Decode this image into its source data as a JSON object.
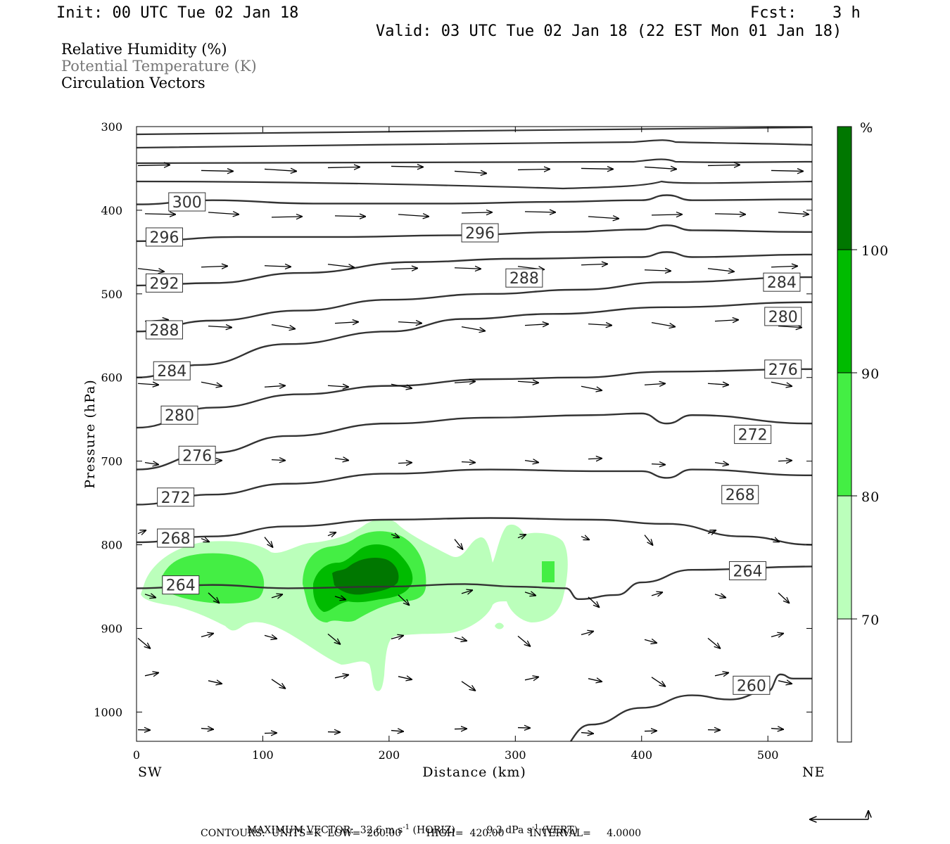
{
  "header": {
    "init": "Init: 00 UTC Tue 02 Jan 18",
    "fcst_label": "Fcst:",
    "fcst_value": "3 h",
    "valid": "Valid: 03 UTC Tue 02 Jan 18 (22 EST Mon 01 Jan 18)"
  },
  "legend": {
    "rh": "Relative Humidity (%)",
    "theta": "Potential Temperature (K)",
    "vectors": "Circulation Vectors"
  },
  "footer": {
    "max_vector_label": "MAXIMUM VECTOR:",
    "horiz_value": "32.6 m s",
    "horiz_suffix": "(HORIZ)",
    "vert_value": "9.3 dPa s",
    "vert_suffix": "(VERT)",
    "exponent": "-1",
    "contours": "CONTOURS:  UNITS=K  LOW=  260.00        HIGH=  420.00        INTERVAL=     4.0000"
  },
  "colors": {
    "rh_70": "#bbffbb",
    "rh_80": "#44ee44",
    "rh_90": "#00bb00",
    "rh_100": "#007700",
    "contour": "#333333"
  },
  "chart_data": {
    "type": "cross-section",
    "xlabel": "Distance (km)",
    "ylabel": "Pressure (hPa)",
    "x_ticks": [
      0,
      100,
      200,
      300,
      400,
      500
    ],
    "y_ticks": [
      300,
      400,
      500,
      600,
      700,
      800,
      900,
      1000
    ],
    "xlim": [
      0,
      535
    ],
    "ylim": [
      300,
      1035
    ],
    "y_reversed": true,
    "left_end_label": "SW",
    "right_end_label": "NE",
    "colorbar": {
      "unit": "%",
      "levels": [
        70,
        80,
        90,
        100
      ],
      "labels": [
        "70",
        "80",
        "90",
        "100"
      ]
    },
    "theta_contours": [
      {
        "label": "300",
        "label_at": [
          40,
          390
        ],
        "points": [
          [
            0,
            393
          ],
          [
            60,
            388
          ],
          [
            140,
            392
          ],
          [
            250,
            392
          ],
          [
            330,
            390
          ],
          [
            400,
            388
          ],
          [
            420,
            382
          ],
          [
            440,
            388
          ],
          [
            535,
            387
          ]
        ]
      },
      {
        "label": "296",
        "label_at": [
          22,
          432
        ],
        "points": [
          [
            0,
            437
          ],
          [
            80,
            432
          ],
          [
            160,
            432
          ],
          [
            250,
            430
          ],
          [
            340,
            426
          ],
          [
            400,
            423
          ],
          [
            420,
            418
          ],
          [
            440,
            424
          ],
          [
            535,
            426
          ]
        ]
      },
      {
        "label": "296",
        "label_at": [
          272,
          427
        ],
        "points": []
      },
      {
        "label": "292",
        "label_at": [
          22,
          487
        ],
        "points": [
          [
            0,
            490
          ],
          [
            60,
            487
          ],
          [
            130,
            475
          ],
          [
            220,
            462
          ],
          [
            300,
            458
          ],
          [
            400,
            456
          ],
          [
            420,
            450
          ],
          [
            440,
            456
          ],
          [
            535,
            453
          ]
        ]
      },
      {
        "label": "288",
        "label_at": [
          307,
          481
        ],
        "points": []
      },
      {
        "label": "284",
        "label_at": [
          511,
          486
        ],
        "points": [
          [
            0,
            545
          ],
          [
            60,
            532
          ],
          [
            130,
            520
          ],
          [
            200,
            507
          ],
          [
            280,
            500
          ],
          [
            350,
            495
          ],
          [
            420,
            486
          ],
          [
            535,
            480
          ]
        ]
      },
      {
        "label": "288",
        "label_at": [
          22,
          543
        ],
        "points": []
      },
      {
        "label": "280",
        "label_at": [
          512,
          527
        ],
        "points": [
          [
            0,
            600
          ],
          [
            50,
            585
          ],
          [
            120,
            560
          ],
          [
            200,
            545
          ],
          [
            260,
            530
          ],
          [
            330,
            524
          ],
          [
            420,
            516
          ],
          [
            535,
            510
          ]
        ]
      },
      {
        "label": "284",
        "label_at": [
          28,
          592
        ],
        "points": []
      },
      {
        "label": "276",
        "label_at": [
          512,
          590
        ],
        "points": [
          [
            0,
            660
          ],
          [
            60,
            636
          ],
          [
            130,
            620
          ],
          [
            200,
            610
          ],
          [
            280,
            602
          ],
          [
            350,
            600
          ],
          [
            420,
            593
          ],
          [
            535,
            590
          ]
        ]
      },
      {
        "label": "280",
        "label_at": [
          34,
          645
        ],
        "points": []
      },
      {
        "label": "272",
        "label_at": [
          488,
          668
        ],
        "points": [
          [
            0,
            710
          ],
          [
            60,
            690
          ],
          [
            120,
            670
          ],
          [
            200,
            655
          ],
          [
            280,
            648
          ],
          [
            360,
            645
          ],
          [
            400,
            643
          ],
          [
            420,
            655
          ],
          [
            440,
            645
          ],
          [
            535,
            655
          ]
        ]
      },
      {
        "label": "276",
        "label_at": [
          48,
          693
        ],
        "points": []
      },
      {
        "label": "268",
        "label_at": [
          478,
          740
        ],
        "points": [
          [
            0,
            752
          ],
          [
            60,
            740
          ],
          [
            120,
            727
          ],
          [
            200,
            715
          ],
          [
            280,
            710
          ],
          [
            360,
            712
          ],
          [
            400,
            712
          ],
          [
            420,
            720
          ],
          [
            440,
            710
          ],
          [
            535,
            717
          ]
        ]
      },
      {
        "label": "272",
        "label_at": [
          31,
          743
        ],
        "points": []
      },
      {
        "label": "264",
        "label_at": [
          484,
          831
        ],
        "points": [
          [
            0,
            797
          ],
          [
            60,
            790
          ],
          [
            120,
            778
          ],
          [
            200,
            770
          ],
          [
            280,
            768
          ],
          [
            360,
            770
          ],
          [
            420,
            775
          ],
          [
            480,
            790
          ],
          [
            535,
            800
          ]
        ]
      },
      {
        "label": "268",
        "label_at": [
          31,
          792
        ],
        "points": []
      },
      {
        "label": "264",
        "label_at": [
          35,
          848
        ],
        "points": [
          [
            0,
            852
          ],
          [
            60,
            848
          ],
          [
            120,
            852
          ],
          [
            200,
            850
          ],
          [
            260,
            847
          ],
          [
            300,
            850
          ],
          [
            340,
            852
          ],
          [
            350,
            865
          ],
          [
            380,
            860
          ],
          [
            400,
            845
          ],
          [
            440,
            830
          ],
          [
            535,
            826
          ]
        ]
      },
      {
        "label": "260",
        "label_at": [
          487,
          968
        ],
        "points": [
          [
            330,
            1050
          ],
          [
            360,
            1015
          ],
          [
            400,
            995
          ],
          [
            440,
            980
          ],
          [
            470,
            985
          ],
          [
            500,
            975
          ],
          [
            510,
            955
          ],
          [
            520,
            960
          ],
          [
            535,
            960
          ]
        ]
      }
    ]
  }
}
